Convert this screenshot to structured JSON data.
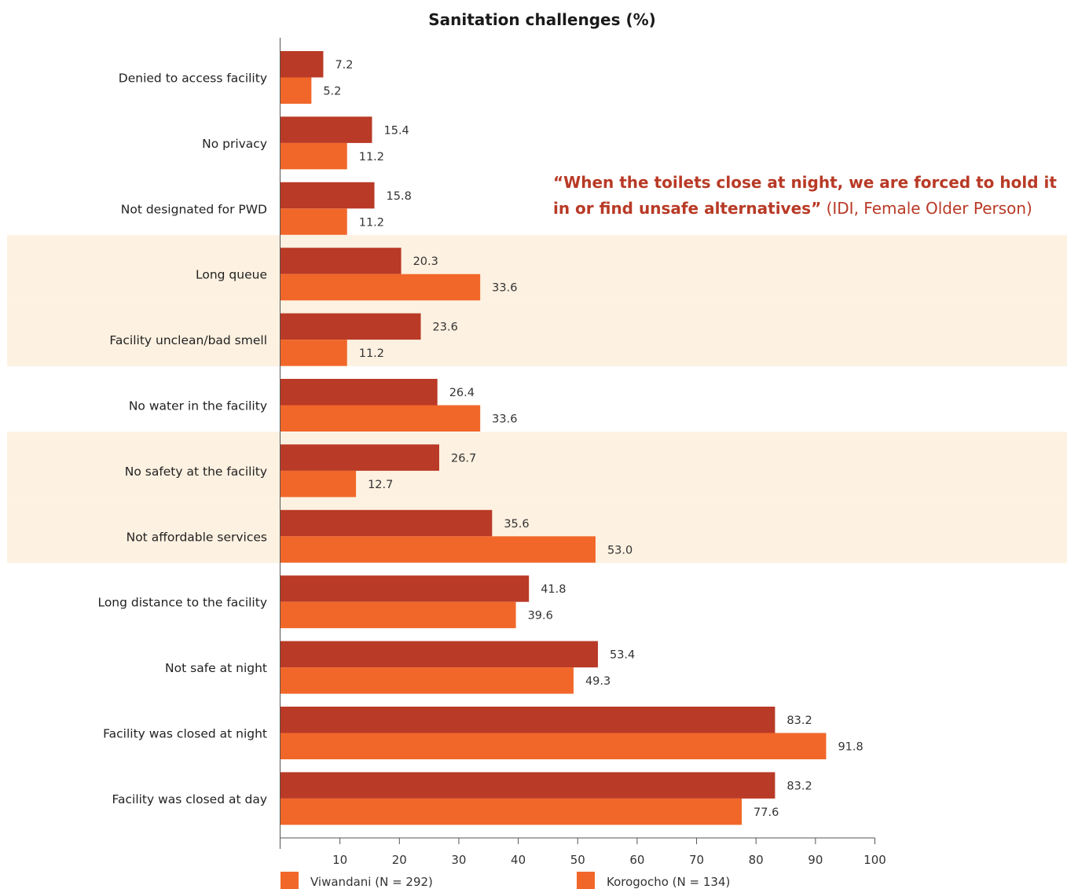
{
  "chart_data": {
    "type": "bar",
    "orientation": "horizontal",
    "title": "Sanitation challenges  (%)",
    "categories": [
      "Denied to access facility",
      "No privacy",
      "Not designated for PWD",
      "Long queue",
      "Facility unclean/bad smell",
      "No water in the facility",
      "No safety at the facility",
      "Not affordable services",
      "Long distance to the facility",
      "Not safe at night",
      "Facility was closed at night",
      "Facility was closed at day"
    ],
    "series": [
      {
        "name": "Viwandani (N = 292)",
        "color": "#b93a26",
        "values": [
          7.2,
          15.4,
          15.8,
          20.3,
          23.6,
          26.4,
          26.7,
          35.6,
          41.8,
          53.4,
          83.2,
          83.2
        ],
        "labels": [
          "7.2",
          "15.4",
          "15.8",
          "20.3",
          "23.6",
          "26.4",
          "26.7",
          "35.6",
          "41.8",
          "53.4",
          "83.2",
          "83.2"
        ]
      },
      {
        "name": "Korogocho (N = 134)",
        "color": "#f1672a",
        "values": [
          5.2,
          11.2,
          11.2,
          33.6,
          11.2,
          33.6,
          12.7,
          53.0,
          39.6,
          49.3,
          91.8,
          77.6
        ],
        "labels": [
          "5.2",
          "11.2",
          "11.2",
          "33.6",
          "11.2",
          "33.6",
          "12.7",
          "53.0",
          "39.6",
          "49.3",
          "91.8",
          "77.6"
        ]
      }
    ],
    "xlim": [
      0,
      100
    ],
    "xticks": [
      "10",
      "20",
      "30",
      "40",
      "50",
      "60",
      "70",
      "80",
      "90",
      "100"
    ],
    "highlighted_categories": [
      "Long queue",
      "Facility unclean/bad smell",
      "No safety at the facility",
      "Not affordable services"
    ],
    "highlight_color": "#fdf1e1",
    "legend_position": "bottom",
    "grid": false
  },
  "quote": {
    "text_bold": "“When the toilets close at night, we are forced to hold it in or find unsafe alternatives”",
    "source": "(IDI, Female Older Person)",
    "color": "#b83a26"
  }
}
